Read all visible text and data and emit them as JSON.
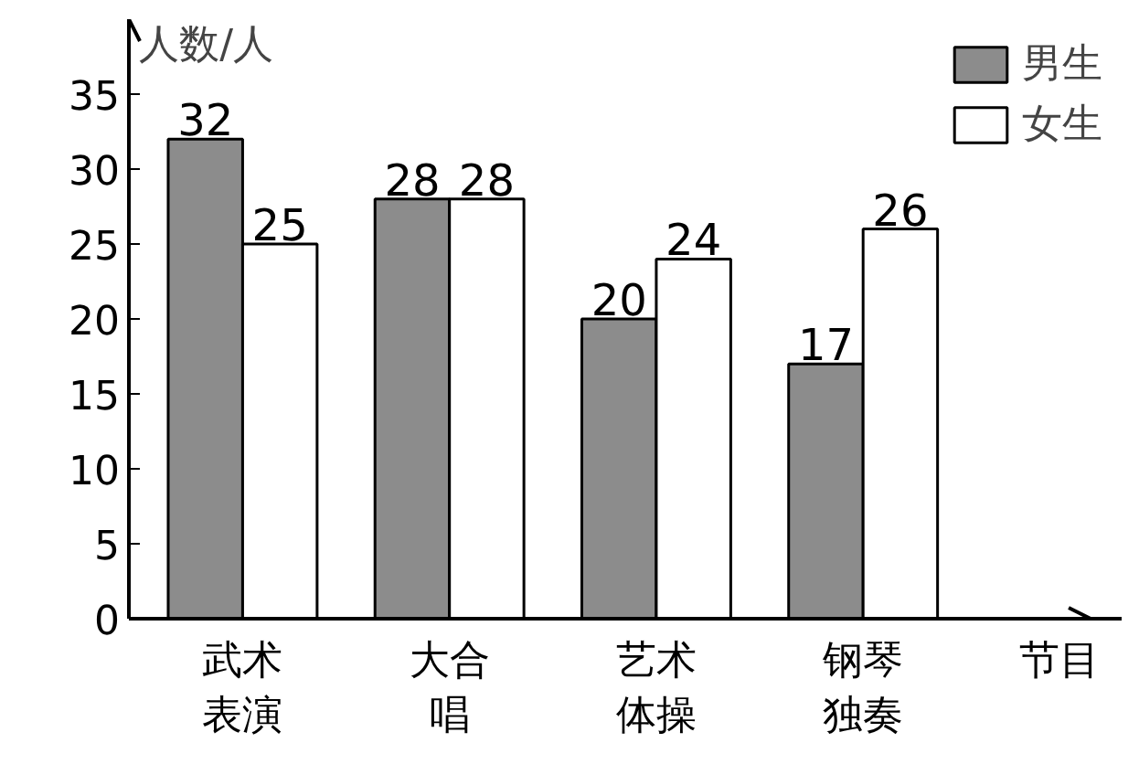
{
  "chart_data": {
    "type": "bar",
    "ylabel": "人数/人",
    "xlabel": "节目",
    "categories": [
      "武术表演",
      "大合唱",
      "艺术体操",
      "钢琴独奏"
    ],
    "series": [
      {
        "name": "男生",
        "color": "#8c8c8c",
        "values": [
          32,
          28,
          20,
          17
        ]
      },
      {
        "name": "女生",
        "color": "#ffffff",
        "values": [
          25,
          28,
          24,
          26
        ]
      }
    ],
    "ylim": [
      0,
      40
    ],
    "yticks": [
      0,
      5,
      10,
      15,
      20,
      25,
      30,
      35
    ],
    "grid": false,
    "legend": "top right",
    "data_labels": true
  }
}
